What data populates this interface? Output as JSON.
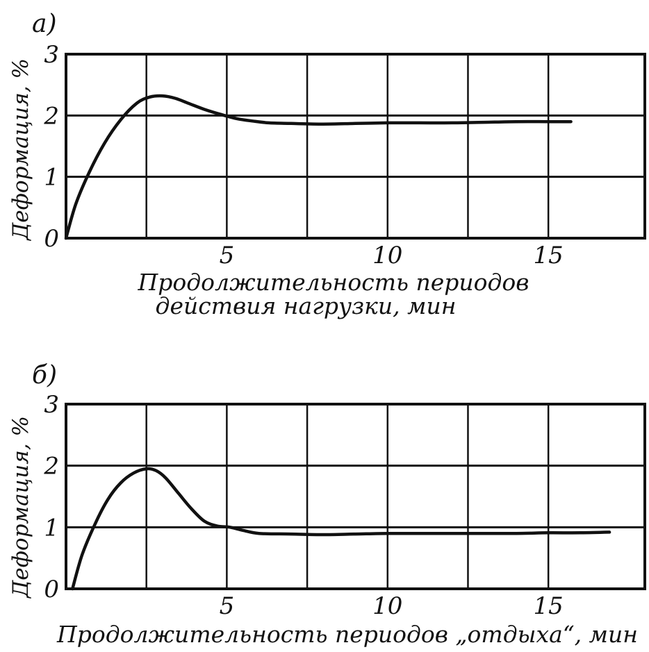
{
  "chart_data": [
    {
      "type": "line",
      "panel_label": "а)",
      "xlabel_line1": "Продолжительность  периодов",
      "xlabel_line2": "действия  нагрузки, мин",
      "ylabel": "Деформация, %",
      "xlim": [
        0,
        18
      ],
      "ylim": [
        0,
        3
      ],
      "x_ticks": [
        5,
        10,
        15
      ],
      "x_tick_labels": [
        "5",
        "10",
        "15"
      ],
      "y_ticks": [
        0,
        1,
        2,
        3
      ],
      "y_tick_labels": [
        "0",
        "1",
        "2",
        "3"
      ],
      "x_gridlines": [
        2.5,
        5,
        7.5,
        10,
        12.5,
        15,
        18
      ],
      "grid": true,
      "color": "#111111",
      "series": [
        {
          "x": [
            0,
            0.3,
            0.7,
            1.2,
            1.7,
            2.2,
            2.6,
            3.0,
            3.4,
            3.8,
            4.3,
            4.8,
            5.3,
            5.8,
            6.3,
            7.0,
            8.0,
            9.0,
            10.0,
            11.0,
            12.0,
            13.0,
            14.0,
            15.0,
            15.7
          ],
          "y": [
            0,
            0.55,
            1.05,
            1.55,
            1.93,
            2.2,
            2.3,
            2.32,
            2.28,
            2.2,
            2.1,
            2.02,
            1.95,
            1.91,
            1.88,
            1.87,
            1.86,
            1.87,
            1.88,
            1.88,
            1.88,
            1.89,
            1.9,
            1.9,
            1.9
          ]
        }
      ]
    },
    {
      "type": "line",
      "panel_label": "б)",
      "xlabel_line1": "Продолжительность периодов „отдыха“, мин",
      "xlabel_line2": "",
      "ylabel": "Деформация, %",
      "xlim": [
        0,
        18
      ],
      "ylim": [
        0,
        3
      ],
      "x_ticks": [
        5,
        10,
        15
      ],
      "x_tick_labels": [
        "5",
        "10",
        "15"
      ],
      "y_ticks": [
        0,
        1,
        2,
        3
      ],
      "y_tick_labels": [
        "0",
        "1",
        "2",
        "3"
      ],
      "x_gridlines": [
        2.5,
        5,
        7.5,
        10,
        12.5,
        15,
        18
      ],
      "grid": true,
      "color": "#111111",
      "series": [
        {
          "x": [
            0.2,
            0.5,
            0.9,
            1.3,
            1.7,
            2.1,
            2.5,
            2.8,
            3.1,
            3.5,
            3.9,
            4.3,
            4.7,
            5.1,
            5.5,
            6.0,
            7.0,
            8.0,
            9.0,
            10.0,
            11.0,
            12.0,
            13.0,
            14.0,
            15.0,
            16.0,
            16.9
          ],
          "y": [
            0,
            0.55,
            1.05,
            1.45,
            1.72,
            1.88,
            1.95,
            1.92,
            1.8,
            1.55,
            1.3,
            1.1,
            1.02,
            1.0,
            0.95,
            0.9,
            0.89,
            0.88,
            0.89,
            0.9,
            0.9,
            0.9,
            0.9,
            0.9,
            0.91,
            0.91,
            0.92
          ]
        }
      ]
    }
  ]
}
